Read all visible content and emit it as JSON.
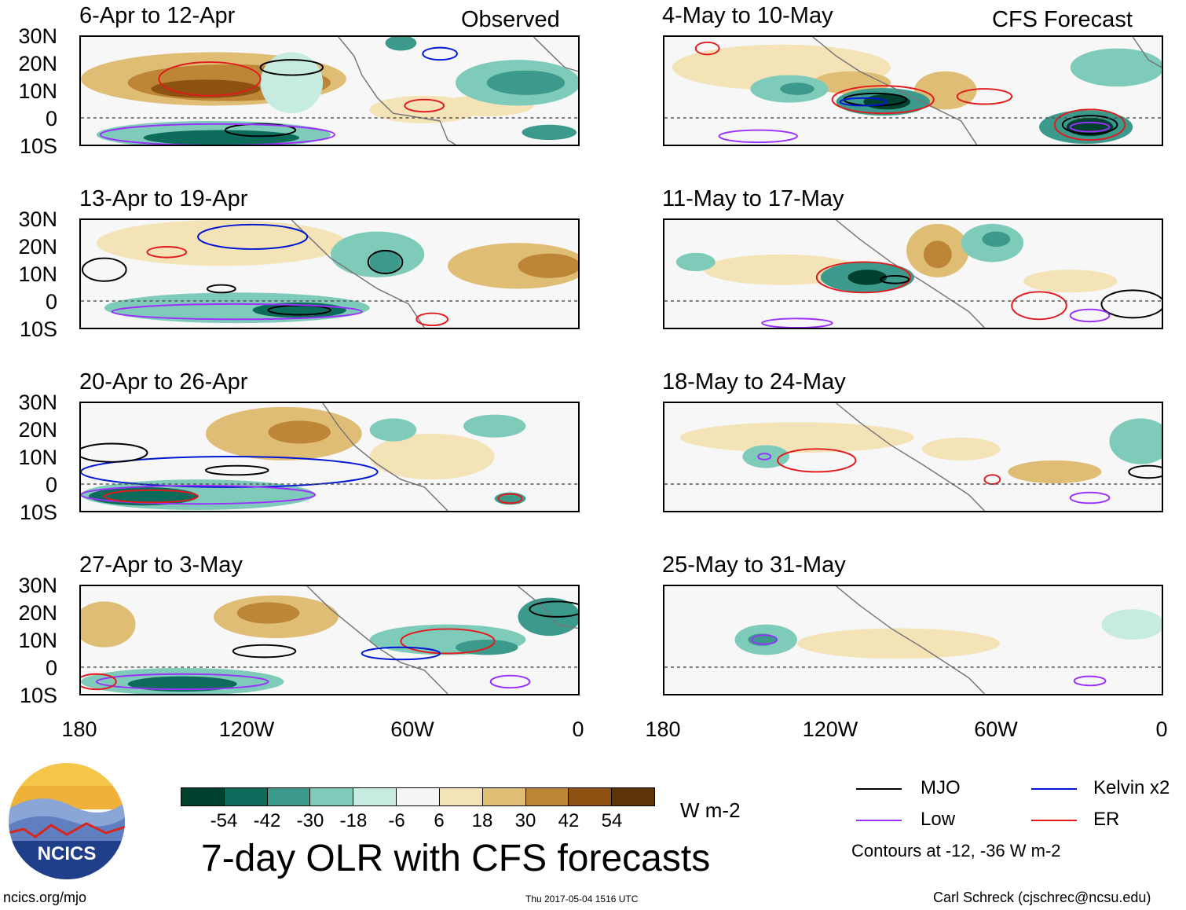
{
  "headers": {
    "left": "Observed",
    "right": "CFS Forecast"
  },
  "y_labels": [
    "30N",
    "20N",
    "10N",
    "0",
    "10S"
  ],
  "x_labels": [
    "180",
    "120W",
    "60W",
    "0"
  ],
  "panels": {
    "left": [
      "6-Apr to 12-Apr",
      "13-Apr to 19-Apr",
      "20-Apr to 26-Apr",
      "27-Apr to 3-May"
    ],
    "right": [
      "4-May to 10-May",
      "11-May to 17-May",
      "18-May to 24-May",
      "25-May to 31-May"
    ]
  },
  "colorbar": {
    "colors": [
      "#00402f",
      "#0d6b5c",
      "#3b9a8b",
      "#7fcbba",
      "#c6ebe0",
      "#f5f5f5",
      "#f3e3b7",
      "#dfbd75",
      "#bd8536",
      "#8d5212",
      "#5e3407"
    ],
    "ticks": [
      "-54",
      "-42",
      "-30",
      "-18",
      "-6",
      "6",
      "18",
      "30",
      "42",
      "54"
    ],
    "units": "W m-2"
  },
  "contour_key": {
    "items": [
      {
        "label": "MJO",
        "color": "#000000"
      },
      {
        "label": "Kelvin x2",
        "color": "#0016d4"
      },
      {
        "label": "Low",
        "color": "#9b30ff"
      },
      {
        "label": "ER",
        "color": "#e31a1c"
      }
    ],
    "note": "Contours at -12, -36 W m-2"
  },
  "logo_text": "NCICS",
  "main_title": "7-day OLR with CFS forecasts",
  "footer": {
    "url": "ncics.org/mjo",
    "timestamp": "Thu 2017-05-04 1516 UTC",
    "credit": "Carl Schreck (cjschrec@ncsu.edu)"
  }
}
